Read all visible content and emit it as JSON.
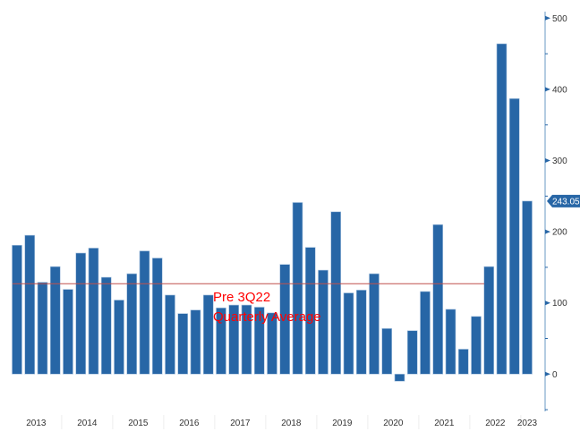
{
  "chart_data": {
    "type": "bar",
    "title": "",
    "xlabel": "",
    "ylabel": "",
    "ylim": [
      -50,
      500
    ],
    "yaxis_position": "right",
    "yticks": [
      0,
      100,
      200,
      300,
      400,
      500
    ],
    "grid": false,
    "categories": [
      "1Q13",
      "2Q13",
      "3Q13",
      "4Q13",
      "1Q14",
      "2Q14",
      "3Q14",
      "4Q14",
      "1Q15",
      "2Q15",
      "3Q15",
      "4Q15",
      "1Q16",
      "2Q16",
      "3Q16",
      "4Q16",
      "1Q17",
      "2Q17",
      "3Q17",
      "4Q17",
      "1Q18",
      "2Q18",
      "3Q18",
      "4Q18",
      "1Q19",
      "2Q19",
      "3Q19",
      "4Q19",
      "1Q20",
      "2Q20",
      "3Q20",
      "4Q20",
      "1Q21",
      "2Q21",
      "3Q21",
      "4Q21",
      "1Q22",
      "2Q22",
      "3Q22",
      "4Q22",
      "1Q23"
    ],
    "values": [
      181,
      195,
      129,
      151,
      119,
      170,
      177,
      136,
      104,
      141,
      173,
      163,
      111,
      85,
      90,
      111,
      93,
      97,
      97,
      94,
      86,
      154,
      241,
      178,
      146,
      228,
      114,
      118,
      141,
      64,
      -10,
      61,
      116,
      210,
      91,
      35,
      81,
      151,
      464,
      387,
      243.05
    ],
    "year_labels": [
      "2013",
      "2014",
      "2015",
      "2016",
      "2017",
      "2018",
      "2019",
      "2020",
      "2021",
      "2022",
      "2023"
    ],
    "last_value_label": "243.05",
    "reference_line": {
      "value": 127,
      "label_line1": "Pre 3Q22",
      "label_line2": "Quarterly Average"
    },
    "colors": {
      "bar": "#2766a6",
      "reference_line": "#c0504d",
      "annotation": "#ff0000",
      "axis": "#9bbbd9"
    }
  }
}
